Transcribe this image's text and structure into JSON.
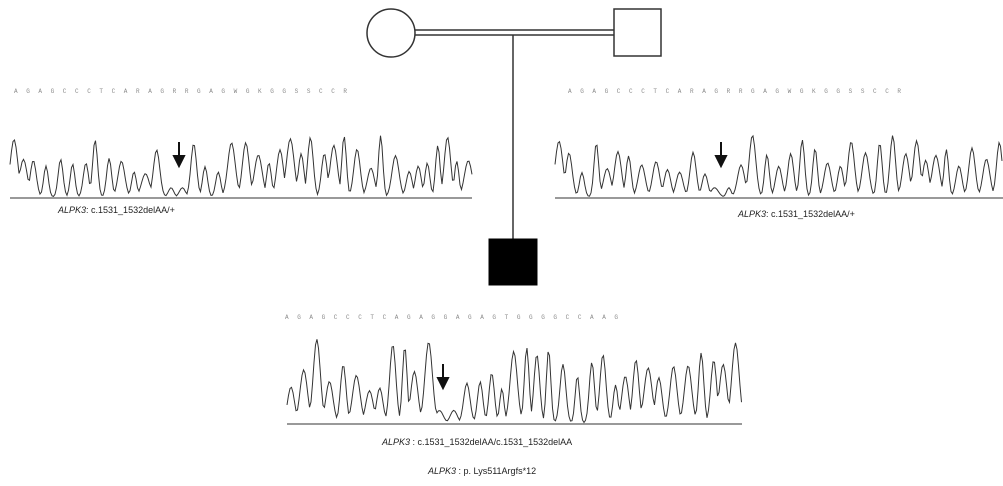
{
  "pedigree": {
    "mother": {
      "symbol": "circle",
      "affected": false
    },
    "father": {
      "symbol": "square",
      "affected": false
    },
    "proband": {
      "symbol": "square",
      "affected": true
    }
  },
  "panels": {
    "mother": {
      "sequence": "A G A G C C C T C A R A G R R G A G W G K G G S S C C R",
      "gene": "ALPK3",
      "genotype": ": c.1531_1532delAA/+"
    },
    "father": {
      "sequence": "A G A G C C C T C A R A G R R G A G W G K G G S S C C R",
      "gene": "ALPK3",
      "genotype": ": c.1531_1532delAA/+"
    },
    "proband": {
      "sequence": "A G A G C C C T C A G A G G A G A G T G G G G C C A A G",
      "gene": "ALPK3",
      "genotype": " : c.1531_1532delAA/c.1531_1532delAA",
      "protein_gene": "ALPK3",
      "protein": " : p. Lys511Argfs*12"
    }
  },
  "colors": {
    "line": "#333333",
    "trace": "#333333",
    "affected_fill": "#000000",
    "sequence_text": "#8a8a8a"
  },
  "icons": {
    "arrow": "down-arrow-icon"
  }
}
